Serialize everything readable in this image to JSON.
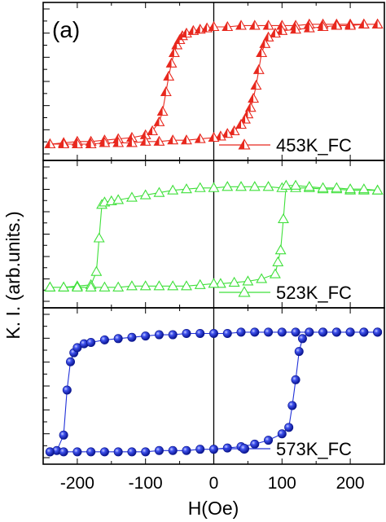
{
  "chart_data": {
    "type": "scatter",
    "panel_label": "(a)",
    "xlabel": "H(Oe)",
    "ylabel": "K. I. (arb.units.)",
    "xlim": [
      -250,
      250
    ],
    "xticks": [
      -200,
      -100,
      0,
      100,
      200
    ],
    "shared_x_axis": true,
    "vertical_reference_line_x": 0,
    "panels": [
      {
        "series_name": "453K_FC",
        "color": "#e8281e",
        "marker": "triangle-half-filled",
        "ylim": [
          0,
          1
        ],
        "legend_position": "bottom-right",
        "x": [
          -240,
          -220,
          -200,
          -180,
          -160,
          -140,
          -120,
          -100,
          -90,
          -80,
          -75,
          -70,
          -66,
          -62,
          -58,
          -54,
          -50,
          -46,
          -40,
          -30,
          -20,
          -10,
          0,
          20,
          40,
          60,
          80,
          100,
          120,
          140,
          160,
          180,
          200,
          220,
          240,
          240,
          220,
          200,
          180,
          160,
          140,
          120,
          100,
          90,
          80,
          75,
          70,
          66,
          62,
          58,
          54,
          50,
          46,
          40,
          30,
          20,
          10,
          0,
          -20,
          -40,
          -60,
          -80,
          -100,
          -120,
          -140,
          -160,
          -180,
          -200,
          -220,
          -240
        ],
        "y": [
          0.05,
          0.06,
          0.07,
          0.07,
          0.08,
          0.09,
          0.1,
          0.12,
          0.15,
          0.22,
          0.3,
          0.45,
          0.57,
          0.67,
          0.75,
          0.81,
          0.85,
          0.88,
          0.9,
          0.92,
          0.93,
          0.94,
          0.95,
          0.95,
          0.96,
          0.96,
          0.96,
          0.96,
          0.96,
          0.97,
          0.97,
          0.97,
          0.97,
          0.97,
          0.97,
          0.97,
          0.97,
          0.96,
          0.96,
          0.95,
          0.94,
          0.93,
          0.92,
          0.9,
          0.87,
          0.82,
          0.75,
          0.62,
          0.5,
          0.4,
          0.33,
          0.28,
          0.24,
          0.2,
          0.15,
          0.13,
          0.11,
          0.1,
          0.09,
          0.08,
          0.08,
          0.07,
          0.07,
          0.06,
          0.06,
          0.06,
          0.05,
          0.05,
          0.05,
          0.05
        ]
      },
      {
        "series_name": "523K_FC",
        "color": "#3fe03a",
        "marker": "triangle-open",
        "ylim": [
          0,
          1
        ],
        "legend_position": "bottom-right",
        "x": [
          -240,
          -220,
          -200,
          -180,
          -172,
          -168,
          -164,
          -160,
          -150,
          -140,
          -120,
          -100,
          -80,
          -60,
          -40,
          -20,
          0,
          20,
          40,
          60,
          80,
          100,
          120,
          140,
          160,
          180,
          200,
          220,
          240,
          240,
          220,
          200,
          180,
          160,
          140,
          120,
          106,
          102,
          98,
          94,
          90,
          70,
          50,
          30,
          10,
          0,
          -20,
          -40,
          -60,
          -80,
          -100,
          -120,
          -140,
          -160,
          -180,
          -200,
          -220,
          -240
        ],
        "y": [
          0.09,
          0.09,
          0.1,
          0.11,
          0.22,
          0.5,
          0.78,
          0.8,
          0.81,
          0.82,
          0.84,
          0.86,
          0.88,
          0.9,
          0.91,
          0.92,
          0.92,
          0.93,
          0.93,
          0.93,
          0.93,
          0.92,
          0.92,
          0.92,
          0.91,
          0.91,
          0.9,
          0.9,
          0.9,
          0.9,
          0.91,
          0.91,
          0.92,
          0.92,
          0.93,
          0.94,
          0.94,
          0.66,
          0.4,
          0.3,
          0.2,
          0.16,
          0.14,
          0.13,
          0.12,
          0.12,
          0.11,
          0.1,
          0.1,
          0.1,
          0.1,
          0.1,
          0.09,
          0.09,
          0.09,
          0.09,
          0.09,
          0.09
        ]
      },
      {
        "series_name": "573K_FC",
        "color": "#2030d8",
        "marker": "sphere",
        "ylim": [
          0,
          1
        ],
        "legend_position": "bottom-right",
        "x": [
          -240,
          -230,
          -220,
          -215,
          -210,
          -205,
          -200,
          -190,
          -180,
          -160,
          -140,
          -120,
          -100,
          -80,
          -60,
          -40,
          -20,
          0,
          20,
          40,
          60,
          80,
          100,
          120,
          140,
          160,
          180,
          200,
          220,
          240,
          240,
          220,
          200,
          180,
          160,
          140,
          130,
          125,
          120,
          115,
          110,
          100,
          80,
          60,
          40,
          20,
          0,
          -20,
          -40,
          -60,
          -80,
          -100,
          -120,
          -140,
          -160,
          -180,
          -200,
          -220,
          -240
        ],
        "y": [
          0.02,
          0.03,
          0.15,
          0.5,
          0.72,
          0.79,
          0.83,
          0.86,
          0.87,
          0.89,
          0.9,
          0.91,
          0.92,
          0.93,
          0.93,
          0.94,
          0.94,
          0.94,
          0.94,
          0.95,
          0.95,
          0.95,
          0.95,
          0.95,
          0.95,
          0.95,
          0.95,
          0.95,
          0.95,
          0.95,
          0.95,
          0.95,
          0.95,
          0.95,
          0.95,
          0.95,
          0.9,
          0.8,
          0.58,
          0.38,
          0.21,
          0.16,
          0.11,
          0.08,
          0.06,
          0.05,
          0.04,
          0.04,
          0.03,
          0.03,
          0.03,
          0.02,
          0.02,
          0.02,
          0.02,
          0.02,
          0.02,
          0.02,
          0.02
        ]
      }
    ]
  }
}
